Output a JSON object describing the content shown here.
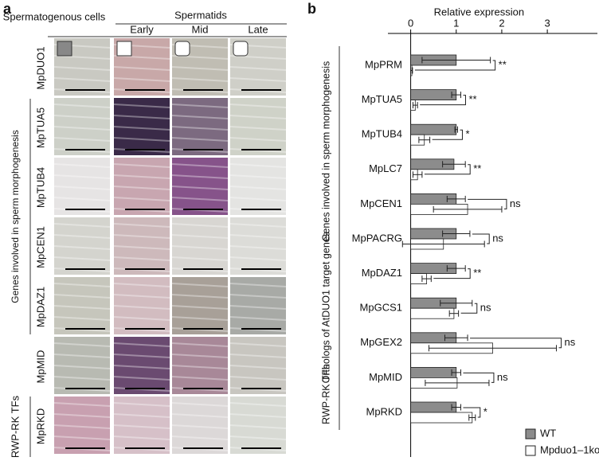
{
  "figure": {
    "panel_labels": [
      "a",
      "b"
    ],
    "panel_a": {
      "col_group": "Spermatogenous cells",
      "spermatids": "Spermatids",
      "stages": [
        "Early",
        "Mid",
        "Late"
      ],
      "rows": [
        "MpDUO1",
        "MpTUA5",
        "MpTUB4",
        "MpCEN1",
        "MpDAZ1",
        "MpMID",
        "MpRKD"
      ],
      "groups": [
        "Genes involved in sperm morphogenesis",
        "RWP-RK TFs"
      ]
    }
  },
  "chart_data": {
    "type": "hbar",
    "title": "Relative expression",
    "categories": [
      "MpPRM",
      "MpTUA5",
      "MpTUB4",
      "MpLC7",
      "MpCEN1",
      "MpPACRG",
      "MpDAZ1",
      "MpGCS1",
      "MpGEX2",
      "MpMID",
      "MpRKD"
    ],
    "series": [
      {
        "name": "WT",
        "color": "#8c8c8c",
        "values": [
          1.0,
          1.0,
          1.0,
          0.95,
          1.0,
          1.0,
          1.0,
          1.0,
          1.0,
          1.0,
          1.0
        ],
        "errors": [
          0.75,
          0.1,
          0.03,
          0.25,
          0.2,
          0.3,
          0.2,
          0.35,
          0.25,
          0.1,
          0.1
        ]
      },
      {
        "name": "Mpduo1–1ko",
        "color": "#ffffff",
        "values": [
          0.02,
          0.1,
          0.3,
          0.15,
          1.25,
          0.72,
          0.35,
          0.95,
          1.8,
          1.02,
          1.35
        ],
        "errors": [
          0.02,
          0.05,
          0.12,
          0.1,
          0.75,
          0.9,
          0.1,
          0.1,
          1.4,
          0.7,
          0.07
        ]
      }
    ],
    "significance": [
      "**",
      "**",
      "*",
      "**",
      "ns",
      "ns",
      "**",
      "ns",
      "ns",
      "ns",
      "*"
    ],
    "groups": [
      "Genes involved in sperm morphogenesis",
      "Orthologs of AtDUO1 target genes",
      "RWP-RK TFs"
    ],
    "xlim": [
      -0.5,
      4.1
    ],
    "xticks": [
      0,
      1,
      2,
      3
    ]
  }
}
